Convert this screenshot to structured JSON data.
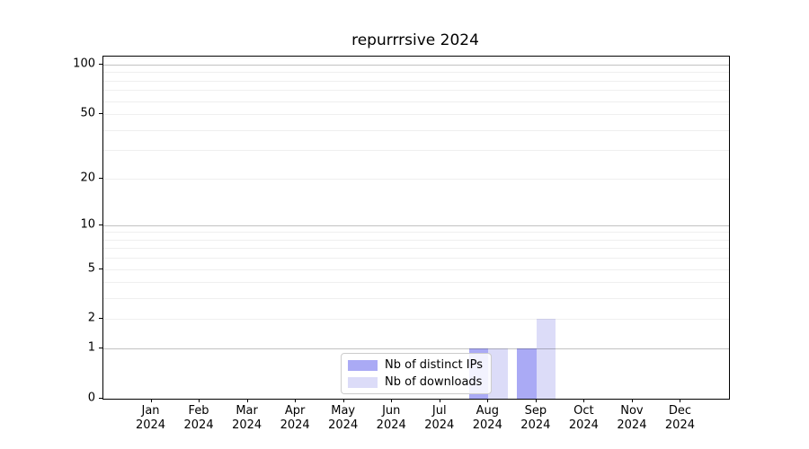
{
  "chart_data": {
    "type": "bar",
    "title": "repurrrsive 2024",
    "categories": [
      "Jan",
      "Feb",
      "Mar",
      "Apr",
      "May",
      "Jun",
      "Jul",
      "Aug",
      "Sep",
      "Oct",
      "Nov",
      "Dec"
    ],
    "category_year": "2024",
    "series": [
      {
        "name": "Nb of distinct IPs",
        "color": "#aaaaf5",
        "values": [
          0,
          0,
          0,
          0,
          0,
          0,
          0,
          1,
          1,
          0,
          0,
          0
        ]
      },
      {
        "name": "Nb of downloads",
        "color": "#dcdcf8",
        "values": [
          0,
          0,
          0,
          0,
          0,
          0,
          0,
          1,
          2,
          0,
          0,
          0
        ]
      }
    ],
    "xlabel": "",
    "ylabel": "",
    "y_scale": "log1p",
    "y_ticks": [
      0,
      1,
      2,
      5,
      10,
      20,
      50,
      100
    ],
    "ylim": [
      0,
      112
    ],
    "grid": "both",
    "grid_major_values": [
      1,
      10,
      100
    ],
    "grid_minor_values": [
      2,
      3,
      4,
      6,
      7,
      8,
      9,
      30,
      40,
      60,
      70,
      80,
      90,
      110
    ],
    "legend_position": "lower center"
  },
  "colors": {
    "grid_major": "#c2c2c2",
    "grid_minor": "#efefef",
    "spine": "#000000",
    "legend_border": "#cccccc",
    "text": "#000000"
  }
}
